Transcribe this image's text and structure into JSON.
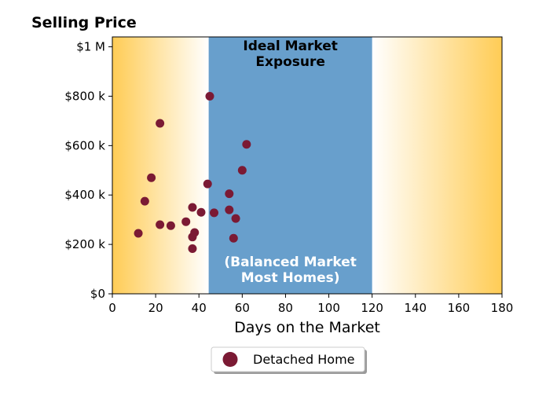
{
  "chart_data": {
    "type": "scatter",
    "title": "Selling Price",
    "xlabel": "Days on the Market",
    "ylabel": "",
    "xlim": [
      0,
      180
    ],
    "ylim": [
      0,
      1040000
    ],
    "x_ticks": [
      0,
      20,
      40,
      60,
      80,
      100,
      120,
      140,
      160,
      180
    ],
    "x_tick_labels": [
      "0",
      "20",
      "40",
      "60",
      "80",
      "100",
      "120",
      "140",
      "160",
      "180"
    ],
    "y_ticks": [
      0,
      200000,
      400000,
      600000,
      800000,
      1000000
    ],
    "y_tick_labels": [
      "$0",
      "$200 k",
      "$400 k",
      "$600 k",
      "$800 k",
      "$1 M"
    ],
    "grid": false,
    "legend_position": "bottom-center",
    "bands": [
      {
        "x_start": 0,
        "x_end": 44.5,
        "type": "gradient-left",
        "color": "#ffcc55"
      },
      {
        "x_start": 44.5,
        "x_end": 120,
        "type": "solid",
        "color": "#689fcc",
        "title_lines": [
          "Ideal Market",
          "Exposure"
        ],
        "note_lines": [
          "(Balanced Market",
          "Most Homes)"
        ]
      },
      {
        "x_start": 120,
        "x_end": 180,
        "type": "gradient-right",
        "color": "#ffcc55"
      }
    ],
    "series": [
      {
        "name": "Detached Home",
        "color": "#7b1a34",
        "points": [
          {
            "x": 45,
            "y": 800000
          },
          {
            "x": 22,
            "y": 690000
          },
          {
            "x": 62,
            "y": 605000
          },
          {
            "x": 60,
            "y": 500000
          },
          {
            "x": 18,
            "y": 470000
          },
          {
            "x": 44,
            "y": 445000
          },
          {
            "x": 54,
            "y": 405000
          },
          {
            "x": 15,
            "y": 375000
          },
          {
            "x": 37,
            "y": 350000
          },
          {
            "x": 54,
            "y": 340000
          },
          {
            "x": 41,
            "y": 330000
          },
          {
            "x": 47,
            "y": 328000
          },
          {
            "x": 57,
            "y": 305000
          },
          {
            "x": 34,
            "y": 292000
          },
          {
            "x": 22,
            "y": 280000
          },
          {
            "x": 27,
            "y": 276000
          },
          {
            "x": 12,
            "y": 245000
          },
          {
            "x": 38,
            "y": 248000
          },
          {
            "x": 37,
            "y": 230000
          },
          {
            "x": 56,
            "y": 225000
          },
          {
            "x": 37,
            "y": 183000
          }
        ]
      }
    ]
  }
}
